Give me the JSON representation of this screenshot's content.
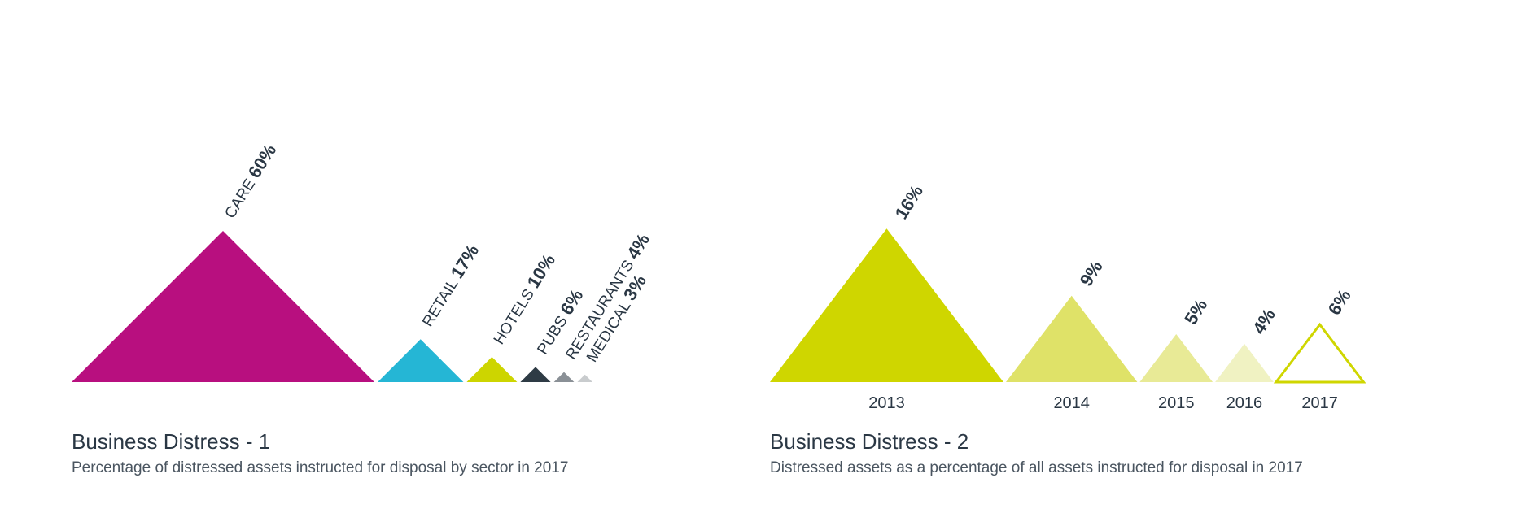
{
  "chart_data": [
    {
      "type": "triangle",
      "title": "Business Distress - 1",
      "subtitle": "Percentage of distressed assets instructed for disposal by sector in 2017",
      "unit": "%",
      "categories": [
        "CARE",
        "RETAIL",
        "HOTELS",
        "PUBS",
        "RESTAURANTS",
        "MEDICAL"
      ],
      "values": [
        60,
        17,
        10,
        6,
        4,
        3
      ],
      "value_labels": [
        "60%",
        "17%",
        "10%",
        "6%",
        "4%",
        "3%"
      ],
      "colors": [
        "#b80f7f",
        "#25b6d5",
        "#cdd500",
        "#2e3b45",
        "#8a9096",
        "#c9ccce"
      ]
    },
    {
      "type": "triangle",
      "title": "Business Distress - 2",
      "subtitle": "Distressed assets as a percentage of all assets instructed for disposal in 2017",
      "unit": "%",
      "categories": [
        "2013",
        "2014",
        "2015",
        "2016",
        "2017"
      ],
      "values": [
        16,
        9,
        5,
        4,
        6
      ],
      "value_labels": [
        "16%",
        "9%",
        "5%",
        "4%",
        "6%"
      ],
      "colors": [
        "#cfd600",
        "#dfe268",
        "#e8ea96",
        "#f0f2c2",
        "#ffffff"
      ],
      "outline_color": "#cfd600"
    }
  ]
}
